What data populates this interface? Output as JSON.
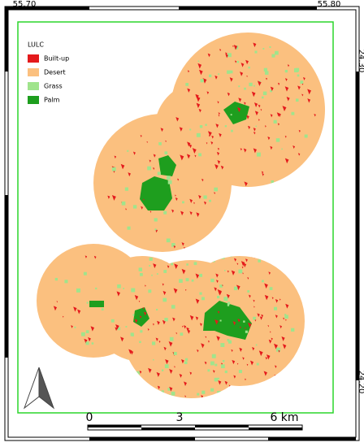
{
  "map": {
    "coordinate_labels": {
      "top": [
        "55.70",
        "55.80"
      ],
      "right": [
        "24.30",
        "24.20"
      ]
    },
    "legend": {
      "title": "LULC",
      "items": [
        {
          "label": "Built-up",
          "color": "#e41a1c"
        },
        {
          "label": "Desert",
          "color": "#fbc07f"
        },
        {
          "label": "Grass",
          "color": "#a0e48c"
        },
        {
          "label": "Palm",
          "color": "#1e9e1e"
        }
      ]
    },
    "scale_bar": {
      "labels": [
        "0",
        "3",
        "6 km"
      ]
    }
  }
}
